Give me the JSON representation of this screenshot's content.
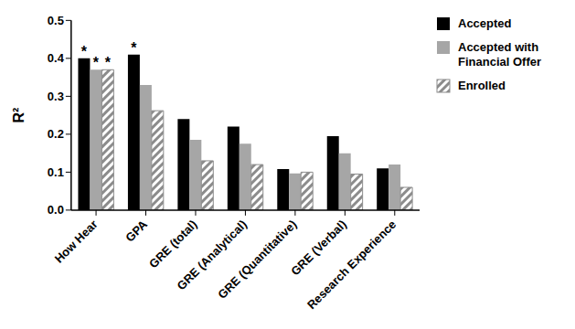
{
  "chart_data": {
    "type": "bar",
    "y_label": "R²",
    "categories": [
      "How Hear",
      "GPA",
      "GRE (total)",
      "GRE (Analytical)",
      "GRE (Quantitative)",
      "GRE (Verbal)",
      "Research Experience"
    ],
    "series": [
      {
        "name": "Accepted",
        "color": "#000000",
        "values": [
          0.4,
          0.41,
          0.24,
          0.22,
          0.108,
          0.195,
          0.11
        ],
        "annotations": [
          "*",
          "*",
          null,
          null,
          null,
          null,
          null
        ]
      },
      {
        "name": "Accepted with Financial Offer",
        "color": "#a6a6a6",
        "values": [
          0.37,
          0.33,
          0.185,
          0.175,
          0.097,
          0.15,
          0.12
        ],
        "annotations": [
          "*",
          null,
          null,
          null,
          null,
          null,
          null
        ]
      },
      {
        "name": "Enrolled",
        "color": "#8c8c8c",
        "values": [
          0.37,
          0.262,
          0.13,
          0.12,
          0.1,
          0.095,
          0.06
        ],
        "annotations": [
          "*",
          null,
          null,
          null,
          null,
          null,
          null
        ]
      }
    ],
    "ylim": [
      0,
      0.5
    ],
    "yticks": [
      {
        "value": 0,
        "label": "0.0"
      },
      0.1,
      0.2,
      0.3,
      0.4,
      0.5
    ],
    "legend": "right"
  }
}
